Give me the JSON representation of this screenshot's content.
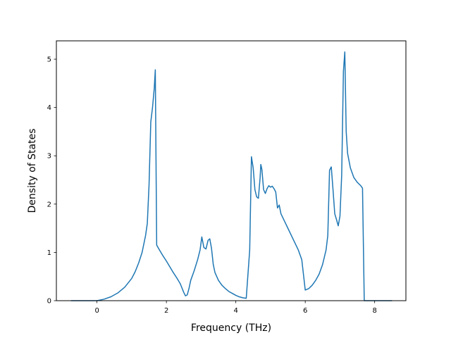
{
  "chart_data": {
    "type": "line",
    "title": "",
    "xlabel": "Frequency (THz)",
    "ylabel": "Density of States",
    "xlim": [
      -1.17,
      8.9
    ],
    "ylim": [
      0,
      5.38
    ],
    "xticks": [
      0,
      2,
      4,
      6,
      8
    ],
    "xtick_labels": [
      "0",
      "2",
      "4",
      "6",
      "8"
    ],
    "yticks": [
      0,
      1,
      2,
      3,
      4,
      5
    ],
    "ytick_labels": [
      "0",
      "1",
      "2",
      "3",
      "4",
      "5"
    ],
    "grid": false,
    "series": [
      {
        "color": "#1f77b4",
        "x": [
          -0.75,
          0.0,
          0.2,
          0.4,
          0.6,
          0.8,
          1.0,
          1.1,
          1.2,
          1.3,
          1.4,
          1.45,
          1.5,
          1.55,
          1.6,
          1.65,
          1.68,
          1.72,
          1.8,
          1.9,
          2.0,
          2.1,
          2.2,
          2.3,
          2.4,
          2.5,
          2.55,
          2.6,
          2.65,
          2.7,
          2.8,
          2.9,
          2.97,
          3.02,
          3.08,
          3.14,
          3.2,
          3.25,
          3.3,
          3.35,
          3.4,
          3.5,
          3.6,
          3.7,
          3.8,
          3.9,
          4.0,
          4.1,
          4.2,
          4.3,
          4.4,
          4.45,
          4.5,
          4.55,
          4.6,
          4.65,
          4.7,
          4.72,
          4.75,
          4.8,
          4.85,
          4.9,
          4.95,
          5.0,
          5.05,
          5.1,
          5.15,
          5.2,
          5.25,
          5.3,
          5.4,
          5.5,
          5.6,
          5.7,
          5.8,
          5.85,
          5.9,
          6.0,
          6.1,
          6.2,
          6.3,
          6.4,
          6.5,
          6.6,
          6.65,
          6.7,
          6.75,
          6.8,
          6.85,
          6.9,
          6.95,
          7.0,
          7.05,
          7.1,
          7.14,
          7.18,
          7.22,
          7.3,
          7.4,
          7.5,
          7.6,
          7.65,
          7.7,
          7.8,
          8.0,
          8.5
        ],
        "y": [
          0.0,
          0.0,
          0.03,
          0.08,
          0.16,
          0.28,
          0.46,
          0.6,
          0.78,
          1.0,
          1.35,
          1.6,
          2.4,
          3.7,
          4.0,
          4.4,
          4.78,
          1.15,
          1.05,
          0.93,
          0.82,
          0.7,
          0.58,
          0.47,
          0.35,
          0.17,
          0.1,
          0.12,
          0.25,
          0.42,
          0.62,
          0.85,
          1.05,
          1.32,
          1.1,
          1.07,
          1.25,
          1.28,
          1.08,
          0.75,
          0.58,
          0.42,
          0.32,
          0.25,
          0.19,
          0.15,
          0.11,
          0.08,
          0.06,
          0.05,
          1.05,
          2.98,
          2.75,
          2.3,
          2.15,
          2.12,
          2.55,
          2.82,
          2.72,
          2.3,
          2.22,
          2.32,
          2.38,
          2.35,
          2.37,
          2.32,
          2.25,
          1.92,
          1.98,
          1.8,
          1.65,
          1.5,
          1.35,
          1.2,
          1.05,
          0.95,
          0.85,
          0.22,
          0.25,
          0.32,
          0.42,
          0.55,
          0.75,
          1.05,
          1.35,
          2.7,
          2.77,
          2.3,
          1.8,
          1.68,
          1.55,
          1.75,
          2.6,
          4.75,
          5.15,
          3.5,
          3.05,
          2.75,
          2.55,
          2.45,
          2.38,
          2.33,
          0.0,
          0.0,
          0.0,
          0.0
        ]
      }
    ]
  }
}
